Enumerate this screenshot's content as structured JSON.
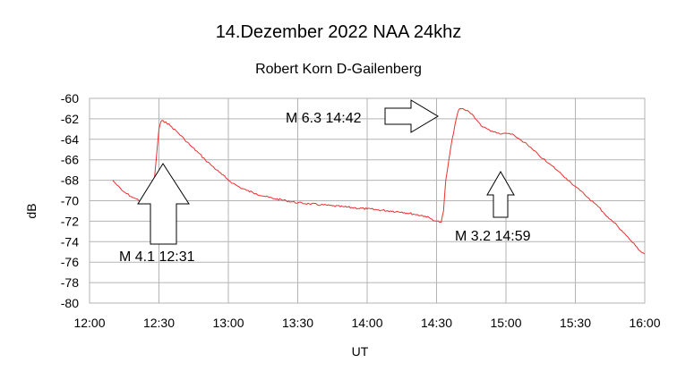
{
  "chart_data": {
    "type": "line",
    "title": "14.Dezember 2022  NAA 24khz",
    "subtitle": "Robert Korn D-Gailenberg",
    "xlabel": "UT",
    "ylabel": "dB",
    "xlim": [
      "12:00",
      "16:00"
    ],
    "ylim": [
      -80,
      -60
    ],
    "x_ticks": [
      "12:00",
      "12:30",
      "13:00",
      "13:30",
      "14:00",
      "14:30",
      "15:00",
      "15:30",
      "16:00"
    ],
    "y_ticks": [
      "-60",
      "-62",
      "-64",
      "-66",
      "-68",
      "-70",
      "-72",
      "-74",
      "-76",
      "-78",
      "-80"
    ],
    "grid": true,
    "legend": "none",
    "series_color": "#e8312f",
    "series": [
      {
        "x": [
          "12:10",
          "12:12",
          "12:14",
          "12:16",
          "12:18",
          "12:20",
          "12:22",
          "12:24",
          "12:26",
          "12:28",
          "12:29",
          "12:30",
          "12:31",
          "12:33",
          "12:35",
          "12:38",
          "12:41",
          "12:44",
          "12:47",
          "12:50",
          "12:53",
          "12:56",
          "12:59",
          "13:02",
          "13:05",
          "13:08",
          "13:12",
          "13:16",
          "13:20",
          "13:25",
          "13:30",
          "13:35",
          "13:40",
          "13:45",
          "13:50",
          "13:55",
          "14:00",
          "14:05",
          "14:10",
          "14:15",
          "14:20",
          "14:25",
          "14:28",
          "14:30",
          "14:32",
          "14:33",
          "14:34",
          "14:36",
          "14:38",
          "14:39",
          "14:40",
          "14:42",
          "14:44",
          "14:46",
          "14:48",
          "14:50",
          "14:52",
          "14:54",
          "14:56",
          "14:58",
          "15:00",
          "15:02",
          "15:04",
          "15:06",
          "15:08",
          "15:10",
          "15:12",
          "15:14",
          "15:16",
          "15:18",
          "15:20",
          "15:22",
          "15:24",
          "15:26",
          "15:28",
          "15:30",
          "15:32",
          "15:34",
          "15:36",
          "15:38",
          "15:40",
          "15:42",
          "15:44",
          "15:46",
          "15:48",
          "15:50",
          "15:52",
          "15:54",
          "15:56",
          "15:58",
          "16:00"
        ],
        "y": [
          -68.0,
          -68.5,
          -69.0,
          -69.3,
          -69.6,
          -69.8,
          -70.0,
          -69.8,
          -69.5,
          -68.0,
          -65.5,
          -63.0,
          -62.2,
          -62.3,
          -62.7,
          -63.3,
          -64.0,
          -64.7,
          -65.3,
          -66.0,
          -66.6,
          -67.2,
          -67.8,
          -68.3,
          -68.7,
          -69.0,
          -69.3,
          -69.6,
          -69.8,
          -70.0,
          -70.2,
          -70.3,
          -70.4,
          -70.5,
          -70.6,
          -70.7,
          -70.8,
          -70.9,
          -71.0,
          -71.1,
          -71.3,
          -71.5,
          -71.8,
          -72.0,
          -72.1,
          -71.0,
          -68.0,
          -65.0,
          -62.5,
          -61.5,
          -61.0,
          -61.1,
          -61.3,
          -61.7,
          -62.3,
          -62.8,
          -63.0,
          -63.2,
          -63.4,
          -63.5,
          -63.4,
          -63.5,
          -63.7,
          -64.0,
          -64.3,
          -64.7,
          -65.1,
          -65.5,
          -65.9,
          -66.3,
          -66.6,
          -67.0,
          -67.4,
          -67.8,
          -68.2,
          -68.6,
          -69.0,
          -69.4,
          -69.8,
          -70.2,
          -70.6,
          -71.1,
          -71.6,
          -72.0,
          -72.4,
          -72.9,
          -73.4,
          -73.9,
          -74.4,
          -74.9,
          -75.2
        ]
      }
    ],
    "annotations": [
      {
        "text": "M 4.1 12:31",
        "arrow": "up",
        "points_to": "12:31"
      },
      {
        "text": "M 6.3  14:42",
        "arrow": "right",
        "points_to": "14:42"
      },
      {
        "text": "M 3.2  14:59",
        "arrow": "up",
        "points_to": "14:59"
      }
    ]
  }
}
